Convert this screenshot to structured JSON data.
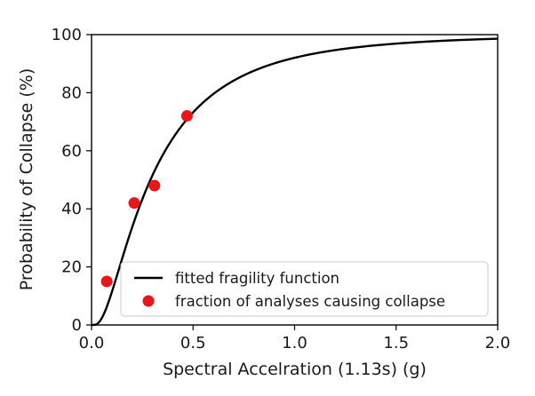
{
  "chart_data": {
    "type": "scatter",
    "xlabel": "Spectral Accelration (1.13s) (g)",
    "ylabel": "Probability of Collapse (%)",
    "xlim": [
      0.0,
      2.0
    ],
    "ylim": [
      0,
      100
    ],
    "xticks": [
      0.0,
      0.5,
      1.0,
      1.5,
      2.0
    ],
    "xtick_labels": [
      "0.0",
      "0.5",
      "1.0",
      "1.5",
      "2.0"
    ],
    "yticks": [
      0,
      20,
      40,
      60,
      80,
      100
    ],
    "ytick_labels": [
      "0",
      "20",
      "40",
      "60",
      "80",
      "100"
    ],
    "grid": false,
    "legend_position": "bottom-right",
    "series": [
      {
        "name": "fitted fragility function",
        "kind": "line",
        "color": "#000000",
        "distribution": "lognormal-cdf",
        "median": 0.29,
        "dispersion": 0.88
      },
      {
        "name": "fraction of analyses causing collapse",
        "kind": "scatter",
        "color": "#e8151b",
        "x": [
          0.075,
          0.21,
          0.31,
          0.47
        ],
        "y": [
          15,
          42,
          48,
          72
        ]
      }
    ]
  }
}
